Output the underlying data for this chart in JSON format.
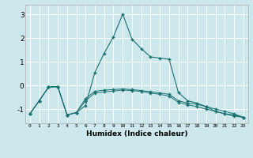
{
  "xlabel": "Humidex (Indice chaleur)",
  "ylabel": "",
  "background_color": "#cce8ec",
  "grid_color": "#ffffff",
  "line_color": "#1a7070",
  "xlim": [
    -0.5,
    23.5
  ],
  "ylim": [
    -1.6,
    3.4
  ],
  "yticks": [
    -1,
    0,
    1,
    2,
    3
  ],
  "xticks": [
    0,
    1,
    2,
    3,
    4,
    5,
    6,
    7,
    8,
    9,
    10,
    11,
    12,
    13,
    14,
    15,
    16,
    17,
    18,
    19,
    20,
    21,
    22,
    23
  ],
  "line1_x": [
    0,
    1,
    2,
    3,
    4,
    5,
    6,
    7,
    8,
    9,
    10,
    11,
    12,
    13,
    14,
    15,
    16,
    17,
    18,
    19,
    20,
    21,
    22,
    23
  ],
  "line1_y": [
    -1.2,
    -0.65,
    -0.08,
    -0.05,
    -1.25,
    -1.15,
    -0.85,
    0.55,
    1.35,
    2.05,
    3.0,
    1.95,
    1.55,
    1.2,
    1.15,
    1.1,
    -0.3,
    -0.65,
    -0.75,
    -0.9,
    -1.1,
    -1.2,
    -1.25,
    -1.35
  ],
  "line2_x": [
    0,
    1,
    2,
    3,
    4,
    5,
    6,
    7,
    8,
    9,
    10,
    11,
    12,
    13,
    14,
    15,
    16,
    17,
    18,
    19,
    20,
    21,
    22,
    23
  ],
  "line2_y": [
    -1.2,
    -0.65,
    -0.08,
    -0.05,
    -1.25,
    -1.15,
    -0.55,
    -0.25,
    -0.2,
    -0.18,
    -0.15,
    -0.18,
    -0.22,
    -0.27,
    -0.32,
    -0.38,
    -0.65,
    -0.75,
    -0.8,
    -0.9,
    -1.0,
    -1.1,
    -1.2,
    -1.35
  ],
  "line3_x": [
    0,
    1,
    2,
    3,
    4,
    5,
    6,
    7,
    8,
    9,
    10,
    11,
    12,
    13,
    14,
    15,
    16,
    17,
    18,
    19,
    20,
    21,
    22,
    23
  ],
  "line3_y": [
    -1.2,
    -0.65,
    -0.08,
    -0.05,
    -1.25,
    -1.15,
    -0.65,
    -0.32,
    -0.28,
    -0.24,
    -0.2,
    -0.22,
    -0.26,
    -0.32,
    -0.38,
    -0.45,
    -0.72,
    -0.82,
    -0.9,
    -1.0,
    -1.1,
    -1.2,
    -1.3,
    -1.35
  ]
}
